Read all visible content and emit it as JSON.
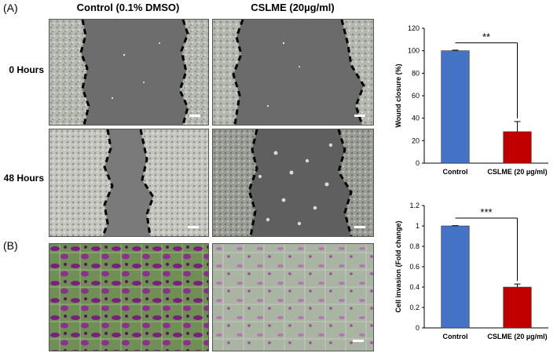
{
  "figure": {
    "panel_a_label": "(A)",
    "panel_b_label": "(B)",
    "col_control": "Control (0.1% DMSO)",
    "col_cslme": "CSLME (20µg/ml)",
    "row_0h": "0 Hours",
    "row_48h": "48 Hours"
  },
  "colors": {
    "control_bar": "#4472c4",
    "cslme_bar": "#c00000",
    "wound_gap": "#6a6a6a",
    "cell_field": "#b9bcb6",
    "stain_purple": "#7a1f7d",
    "stain_green": "#6f8f55"
  },
  "chart_data": [
    {
      "type": "bar",
      "categories": [
        "Control",
        "CSLME (20 µg/ml)"
      ],
      "values": [
        100,
        28
      ],
      "errors": [
        0.5,
        9
      ],
      "xlabel": "",
      "ylabel": "Wound closure (%)",
      "ylim": [
        0,
        120
      ],
      "yticks": [
        "0",
        "20",
        "40",
        "60",
        "80",
        "100",
        "120"
      ],
      "significance": "**",
      "grid": false
    },
    {
      "type": "bar",
      "categories": [
        "Control",
        "CSLME (20 µg/ml)"
      ],
      "values": [
        1.0,
        0.4
      ],
      "errors": [
        0.003,
        0.03
      ],
      "xlabel": "",
      "ylabel": "Cell invasion (Fold change)",
      "ylim": [
        0,
        1.2
      ],
      "yticks": [
        "0",
        "0.2",
        "0.4",
        "0.6",
        "0.8",
        "1",
        "1.2"
      ],
      "significance": "***",
      "grid": false
    }
  ]
}
